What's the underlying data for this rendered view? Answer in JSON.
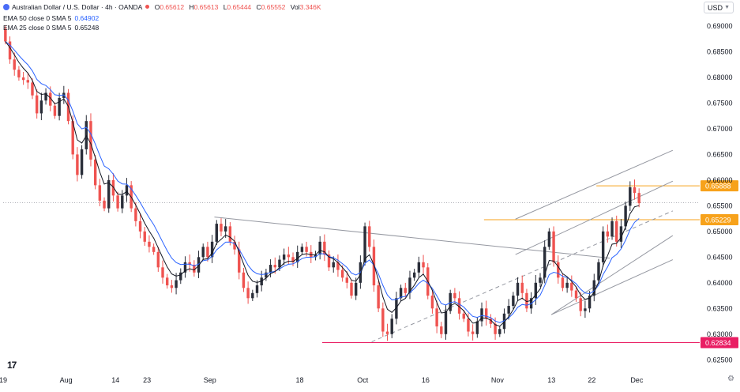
{
  "header": {
    "symbol_title": "Australian Dollar / U.S. Dollar · 4h · OANDA",
    "o_label": "O",
    "o_value": "0.65612",
    "h_label": "H",
    "h_value": "0.65613",
    "l_label": "L",
    "l_value": "0.65444",
    "c_label": "C",
    "c_value": "0.65552",
    "vol_label": "Vol",
    "vol_value": "3.346K",
    "ema1_label": "EMA 50 close 0 SMA 5",
    "ema1_value": "0.64902",
    "ema2_label": "EMA 25 close 0 SMA 5",
    "ema2_value": "0.65248"
  },
  "currency_select": {
    "value": "USD"
  },
  "icons": {
    "logo": "tradingview-logo-icon",
    "settings": "gear-icon"
  },
  "colors": {
    "up": "#2a2e39",
    "down": "#ef5350",
    "ema50": "#2962ff",
    "ema25": "#131722",
    "price_tag": "#f7a21b",
    "support_tag": "#e91e63",
    "channel": "#9598a1"
  },
  "chart_data": {
    "type": "candlestick",
    "title": "Australian Dollar / U.S. Dollar · 4h · OANDA",
    "ylim": [
      0.6235,
      0.692
    ],
    "y_ticks": [
      "0.69000",
      "0.68500",
      "0.68000",
      "0.67500",
      "0.67000",
      "0.66500",
      "0.66000",
      "0.65500",
      "0.65000",
      "0.64500",
      "0.64000",
      "0.63500",
      "0.63000",
      "0.62500"
    ],
    "x_ticks": [
      "19",
      "Aug",
      "14",
      "23",
      "Sep",
      "18",
      "Oct",
      "16",
      "Nov",
      "13",
      "22",
      "Dec"
    ],
    "x_tick_positions": [
      0,
      14,
      25,
      32,
      46,
      66,
      80,
      94,
      110,
      122,
      131,
      141
    ],
    "x_end": 155,
    "price_levels": [
      {
        "value": 0.65888,
        "label": "0.65888",
        "color": "#f7a21b",
        "line": "solid",
        "start": 132
      },
      {
        "value": 0.65229,
        "label": "0.65229",
        "color": "#f7a21b",
        "line": "solid",
        "start": 107
      },
      {
        "value": 0.62834,
        "label": "0.62834",
        "color": "#e91e63",
        "line": "solid",
        "start": 71
      }
    ],
    "current_price": 0.6556,
    "trendlines": [
      {
        "x1": 47,
        "y1": 0.6528,
        "x2": 135,
        "y2": 0.6448
      },
      {
        "x1": 114,
        "y1": 0.6524,
        "x2": 149,
        "y2": 0.6658
      },
      {
        "x1": 114,
        "y1": 0.6455,
        "x2": 149,
        "y2": 0.6598
      },
      {
        "x1": 82,
        "y1": 0.6285,
        "x2": 149,
        "y2": 0.654,
        "dash": true
      },
      {
        "x1": 122,
        "y1": 0.6338,
        "x2": 149,
        "y2": 0.6492
      },
      {
        "x1": 122,
        "y1": 0.6338,
        "x2": 149,
        "y2": 0.6445
      }
    ],
    "ohlc_closes": [
      0.687,
      0.6835,
      0.6815,
      0.68,
      0.6795,
      0.679,
      0.6765,
      0.673,
      0.6755,
      0.677,
      0.6745,
      0.6725,
      0.676,
      0.677,
      0.6715,
      0.665,
      0.661,
      0.666,
      0.6715,
      0.664,
      0.659,
      0.656,
      0.6545,
      0.66,
      0.657,
      0.6545,
      0.657,
      0.659,
      0.6545,
      0.652,
      0.65,
      0.648,
      0.647,
      0.646,
      0.643,
      0.641,
      0.6395,
      0.639,
      0.6405,
      0.642,
      0.644,
      0.6435,
      0.642,
      0.645,
      0.647,
      0.645,
      0.648,
      0.6515,
      0.65,
      0.651,
      0.648,
      0.6465,
      0.642,
      0.639,
      0.637,
      0.638,
      0.6395,
      0.641,
      0.642,
      0.6435,
      0.643,
      0.6445,
      0.6455,
      0.645,
      0.644,
      0.646,
      0.647,
      0.646,
      0.645,
      0.6455,
      0.648,
      0.6455,
      0.643,
      0.644,
      0.6425,
      0.641,
      0.64,
      0.6375,
      0.64,
      0.644,
      0.651,
      0.647,
      0.6395,
      0.635,
      0.6305,
      0.63,
      0.633,
      0.637,
      0.639,
      0.638,
      0.641,
      0.642,
      0.644,
      0.643,
      0.6375,
      0.635,
      0.6315,
      0.63,
      0.6345,
      0.638,
      0.637,
      0.634,
      0.633,
      0.6305,
      0.63,
      0.6325,
      0.635,
      0.633,
      0.632,
      0.63,
      0.631,
      0.634,
      0.6355,
      0.6375,
      0.64,
      0.638,
      0.635,
      0.637,
      0.64,
      0.641,
      0.647,
      0.65,
      0.644,
      0.641,
      0.639,
      0.64,
      0.6385,
      0.637,
      0.6345,
      0.635,
      0.6375,
      0.6405,
      0.644,
      0.65,
      0.649,
      0.652,
      0.648,
      0.651,
      0.655,
      0.6586,
      0.6575,
      0.6555
    ]
  }
}
